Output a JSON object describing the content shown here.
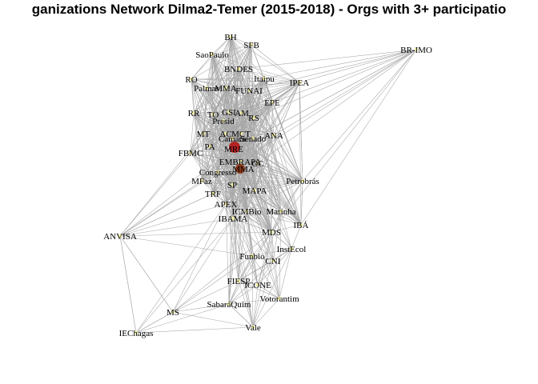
{
  "title": "ganizations Network Dilma2-Temer (2015-2018) - Orgs with 3+ participatio",
  "network": {
    "nodes": [
      {
        "label": "BH",
        "color": "#f7f2a8"
      },
      {
        "label": "SFB",
        "color": "#f7f2a8"
      },
      {
        "label": "SaoPaulo",
        "color": "#f7f2a8"
      },
      {
        "label": "BR-IMO",
        "color": "#f7f2a8"
      },
      {
        "label": "BNDES",
        "color": "#f7f2a8"
      },
      {
        "label": "RO",
        "color": "#f7f2a8"
      },
      {
        "label": "Itaipu",
        "color": "#f7f2a8"
      },
      {
        "label": "Palmas",
        "color": "#f7f2a8"
      },
      {
        "label": "MMA",
        "color": "#f7f2a8"
      },
      {
        "label": "FUNAI",
        "color": "#f7f2a8"
      },
      {
        "label": "IPEA",
        "color": "#f7f2a8"
      },
      {
        "label": "EPE",
        "color": "#f7f2a8"
      },
      {
        "label": "RR",
        "color": "#f7f2a8"
      },
      {
        "label": "GSI",
        "color": "#f7f2a8"
      },
      {
        "label": "AM",
        "color": "#f7f2a8"
      },
      {
        "label": "TO",
        "color": "#f7f2a8"
      },
      {
        "label": "RS",
        "color": "#f7f2a8"
      },
      {
        "label": "Presid",
        "color": "#f7f2a8"
      },
      {
        "label": "MT",
        "color": "#f7f2a8"
      },
      {
        "label": "AC",
        "color": "#f7f2a8"
      },
      {
        "label": "MCT",
        "color": "#f7f2a8"
      },
      {
        "label": "ANA",
        "color": "#f7f2a8"
      },
      {
        "label": "Senado",
        "color": "#f7f2a8"
      },
      {
        "label": "Camara",
        "color": "#f7f2a8"
      },
      {
        "label": "PA",
        "color": "#f7f2a8"
      },
      {
        "label": "MRE",
        "color": "#f7f2a8"
      },
      {
        "label": "FBMC",
        "color": "#f7f2a8"
      },
      {
        "label": "EMBRAPA",
        "color": "#f7f2a8"
      },
      {
        "label": "OC",
        "color": "#f7f2a8"
      },
      {
        "label": "MMA",
        "color": "#f7f2a8"
      },
      {
        "label": "Congresso",
        "color": "#f7f2a8"
      },
      {
        "label": "Petrobrás",
        "color": "#f7f2a8"
      },
      {
        "label": "MFaz",
        "color": "#f7f2a8"
      },
      {
        "label": "SP",
        "color": "#f7f2a8"
      },
      {
        "label": "MAPA",
        "color": "#f7f2a8"
      },
      {
        "label": "TRF",
        "color": "#f7f2a8"
      },
      {
        "label": "APEX",
        "color": "#f7f2a8"
      },
      {
        "label": "ICMBio",
        "color": "#f7f2a8"
      },
      {
        "label": "Marinha",
        "color": "#f7f2a8"
      },
      {
        "label": "IBAMA",
        "color": "#f7f2a8"
      },
      {
        "label": "IBÁ",
        "color": "#f7f2a8"
      },
      {
        "label": "ANVISA",
        "color": "#f7f2a8"
      },
      {
        "label": "MDS",
        "color": "#f7f2a8"
      },
      {
        "label": "InstEcol",
        "color": "#f7f2a8"
      },
      {
        "label": "Funbio",
        "color": "#f7f2a8"
      },
      {
        "label": "CNI",
        "color": "#f7f2a8"
      },
      {
        "label": "FIESP",
        "color": "#f7f2a8"
      },
      {
        "label": "ICONE",
        "color": "#f7f2a8"
      },
      {
        "label": "Votorantim",
        "color": "#f7f2a8"
      },
      {
        "label": "SabaráQuim",
        "color": "#f7f2a8"
      },
      {
        "label": "MS",
        "color": "#f7f2a8"
      },
      {
        "label": "Vale",
        "color": "#f7f2a8"
      },
      {
        "label": "IEChagas",
        "color": "#f7f2a8"
      }
    ],
    "hub_colors": [
      "#b22222",
      "#8b3a1a"
    ],
    "edge_color": "#a8a8a8"
  }
}
